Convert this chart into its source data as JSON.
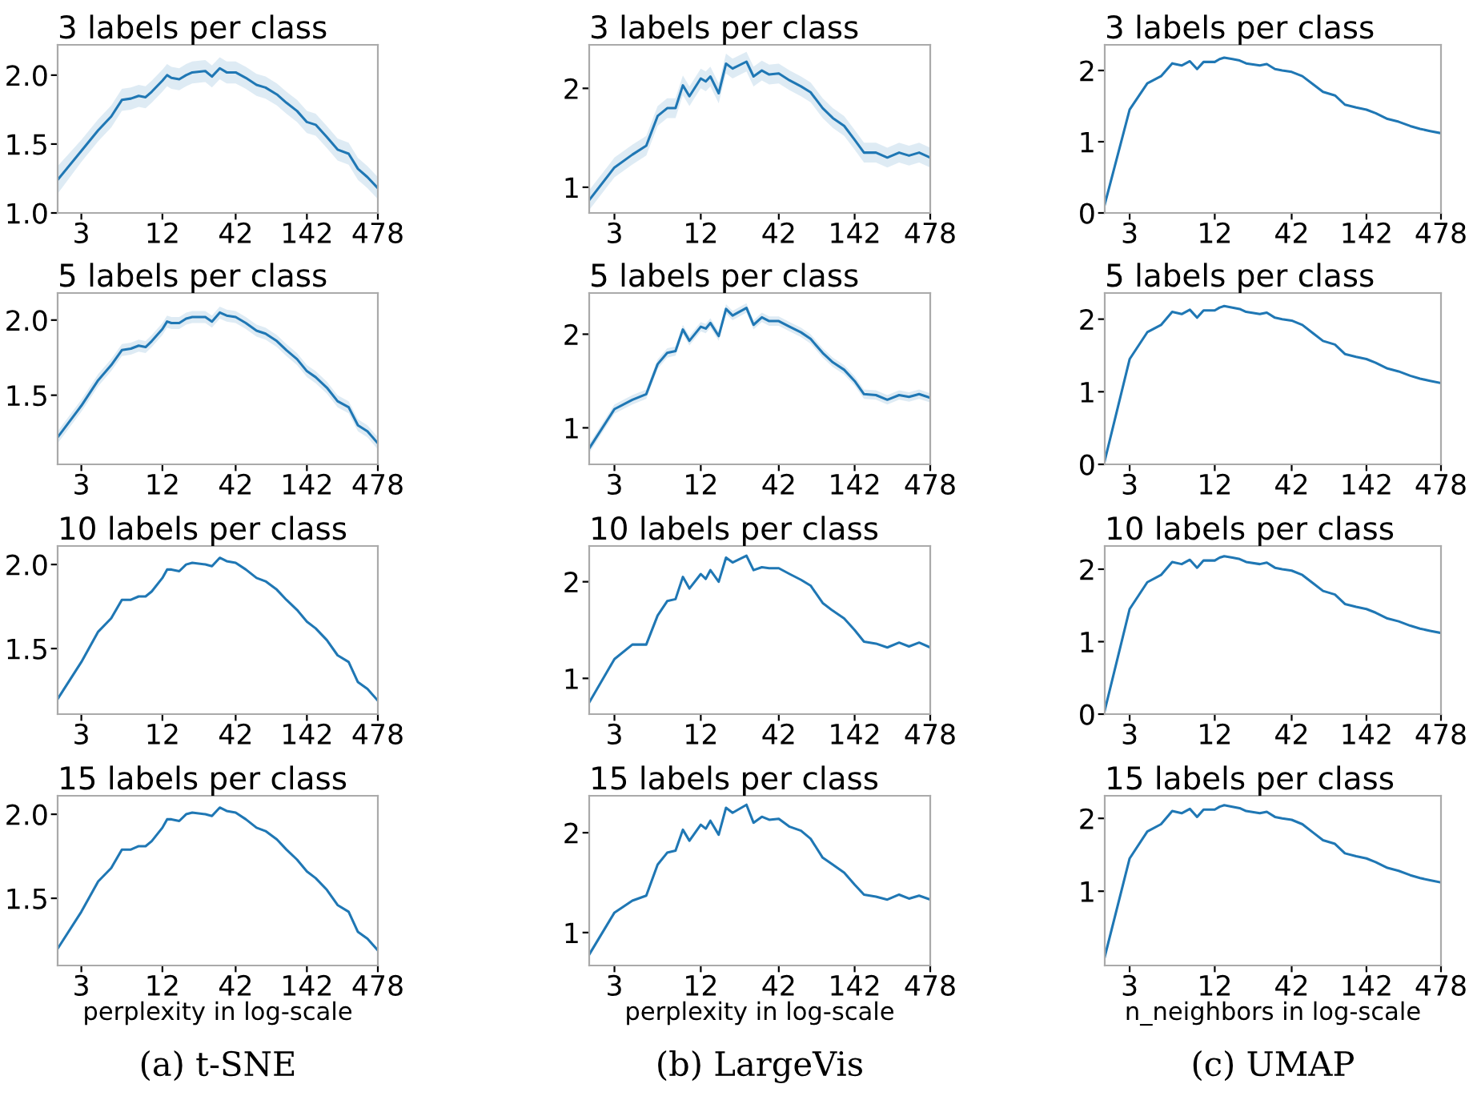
{
  "chart_data": [
    {
      "type": "line",
      "log": "x",
      "title": "3 labels per class",
      "x": [
        2,
        3,
        4,
        5,
        6,
        7,
        8,
        9,
        10,
        12,
        13,
        14,
        16,
        18,
        20,
        25,
        28,
        32,
        36,
        42,
        50,
        60,
        70,
        85,
        100,
        120,
        142,
        165,
        200,
        240,
        290,
        340,
        400,
        478
      ],
      "xlim": [
        2,
        478
      ],
      "xticks": [
        3,
        12,
        42,
        142,
        478
      ],
      "ylim": [
        1.0,
        2.22
      ],
      "yticks": [
        {
          "value": 1.0,
          "label": "1.0"
        },
        {
          "value": 1.5,
          "label": "1.5"
        },
        {
          "value": 2.0,
          "label": "2.0"
        }
      ],
      "series": [
        {
          "color": "#1f77b4",
          "values": [
            1.24,
            1.45,
            1.6,
            1.7,
            1.82,
            1.83,
            1.85,
            1.84,
            1.88,
            1.96,
            2.0,
            1.98,
            1.97,
            2.0,
            2.02,
            2.03,
            1.99,
            2.05,
            2.02,
            2.02,
            1.98,
            1.93,
            1.91,
            1.86,
            1.8,
            1.74,
            1.66,
            1.64,
            1.55,
            1.46,
            1.43,
            1.32,
            1.26,
            1.18
          ],
          "lower": [
            1.14,
            1.37,
            1.52,
            1.62,
            1.74,
            1.75,
            1.77,
            1.76,
            1.8,
            1.88,
            1.92,
            1.9,
            1.89,
            1.92,
            1.94,
            1.95,
            1.91,
            1.97,
            1.94,
            1.94,
            1.9,
            1.85,
            1.83,
            1.78,
            1.72,
            1.66,
            1.58,
            1.56,
            1.47,
            1.38,
            1.35,
            1.24,
            1.18,
            1.1
          ],
          "upper": [
            1.34,
            1.53,
            1.68,
            1.78,
            1.9,
            1.91,
            1.93,
            1.92,
            1.96,
            2.04,
            2.08,
            2.06,
            2.05,
            2.08,
            2.1,
            2.11,
            2.07,
            2.13,
            2.1,
            2.1,
            2.06,
            2.01,
            1.99,
            1.94,
            1.88,
            1.82,
            1.74,
            1.72,
            1.63,
            1.54,
            1.51,
            1.4,
            1.34,
            1.26
          ]
        }
      ]
    },
    {
      "type": "line",
      "log": "x",
      "title": "3 labels per class",
      "x": [
        2,
        3,
        4,
        5,
        6,
        7,
        8,
        9,
        10,
        12,
        13,
        14,
        16,
        18,
        20,
        25,
        28,
        32,
        36,
        42,
        50,
        60,
        70,
        85,
        100,
        120,
        142,
        165,
        200,
        240,
        290,
        340,
        400,
        478
      ],
      "xlim": [
        2,
        478
      ],
      "xticks": [
        3,
        12,
        42,
        142,
        478
      ],
      "ylim": [
        0.74,
        2.44
      ],
      "yticks": [
        1,
        2
      ],
      "series": [
        {
          "color": "#1f77b4",
          "values": [
            0.87,
            1.2,
            1.33,
            1.42,
            1.72,
            1.8,
            1.8,
            2.03,
            1.92,
            2.1,
            2.07,
            2.12,
            1.95,
            2.25,
            2.2,
            2.27,
            2.12,
            2.18,
            2.14,
            2.15,
            2.08,
            2.02,
            1.96,
            1.8,
            1.7,
            1.62,
            1.48,
            1.35,
            1.35,
            1.3,
            1.35,
            1.32,
            1.35,
            1.3
          ],
          "lower": [
            0.77,
            1.1,
            1.23,
            1.32,
            1.62,
            1.7,
            1.7,
            1.93,
            1.82,
            2.0,
            1.97,
            2.02,
            1.85,
            2.15,
            2.1,
            2.17,
            2.02,
            2.08,
            2.04,
            2.05,
            1.98,
            1.92,
            1.86,
            1.7,
            1.6,
            1.52,
            1.38,
            1.25,
            1.25,
            1.2,
            1.25,
            1.22,
            1.25,
            1.2
          ],
          "upper": [
            0.97,
            1.3,
            1.43,
            1.52,
            1.82,
            1.9,
            1.9,
            2.13,
            2.02,
            2.2,
            2.17,
            2.22,
            2.05,
            2.35,
            2.3,
            2.37,
            2.22,
            2.28,
            2.24,
            2.25,
            2.18,
            2.12,
            2.06,
            1.9,
            1.8,
            1.72,
            1.58,
            1.45,
            1.45,
            1.4,
            1.45,
            1.42,
            1.45,
            1.4
          ]
        }
      ]
    },
    {
      "type": "line",
      "log": "x",
      "title": "3 labels per class",
      "x": [
        2,
        3,
        4,
        5,
        6,
        7,
        8,
        9,
        10,
        12,
        13,
        14,
        16,
        18,
        20,
        25,
        28,
        32,
        36,
        42,
        50,
        60,
        70,
        85,
        100,
        120,
        142,
        165,
        200,
        240,
        290,
        340,
        400,
        478
      ],
      "xlim": [
        2,
        478
      ],
      "xticks": [
        3,
        12,
        42,
        142,
        478
      ],
      "ylim": [
        0,
        2.36
      ],
      "yticks": [
        0,
        1,
        2
      ],
      "series": [
        {
          "color": "#1f77b4",
          "values": [
            0.12,
            1.45,
            1.82,
            1.92,
            2.1,
            2.07,
            2.13,
            2.02,
            2.12,
            2.12,
            2.16,
            2.18,
            2.16,
            2.14,
            2.1,
            2.07,
            2.09,
            2.02,
            2.0,
            1.98,
            1.92,
            1.8,
            1.7,
            1.65,
            1.52,
            1.48,
            1.45,
            1.4,
            1.32,
            1.28,
            1.22,
            1.18,
            1.15,
            1.12
          ]
        }
      ]
    },
    {
      "type": "line",
      "log": "x",
      "title": "5 labels per class",
      "x": [
        2,
        3,
        4,
        5,
        6,
        7,
        8,
        9,
        10,
        12,
        13,
        14,
        16,
        18,
        20,
        25,
        28,
        32,
        36,
        42,
        50,
        60,
        70,
        85,
        100,
        120,
        142,
        165,
        200,
        240,
        290,
        340,
        400,
        478
      ],
      "xlim": [
        2,
        478
      ],
      "xticks": [
        3,
        12,
        42,
        142,
        478
      ],
      "ylim": [
        1.04,
        2.18
      ],
      "yticks": [
        {
          "value": 1.5,
          "label": "1.5"
        },
        {
          "value": 2.0,
          "label": "2.0"
        }
      ],
      "series": [
        {
          "color": "#1f77b4",
          "values": [
            1.22,
            1.43,
            1.6,
            1.7,
            1.8,
            1.81,
            1.83,
            1.82,
            1.86,
            1.94,
            1.99,
            1.98,
            1.98,
            2.01,
            2.02,
            2.02,
            1.99,
            2.05,
            2.03,
            2.02,
            1.98,
            1.93,
            1.91,
            1.86,
            1.8,
            1.74,
            1.66,
            1.62,
            1.55,
            1.46,
            1.42,
            1.3,
            1.26,
            1.18
          ],
          "lower": [
            1.18,
            1.39,
            1.56,
            1.66,
            1.76,
            1.77,
            1.79,
            1.78,
            1.82,
            1.9,
            1.95,
            1.94,
            1.94,
            1.97,
            1.98,
            1.98,
            1.95,
            2.01,
            1.99,
            1.98,
            1.94,
            1.89,
            1.87,
            1.82,
            1.76,
            1.7,
            1.62,
            1.58,
            1.51,
            1.42,
            1.38,
            1.26,
            1.22,
            1.14
          ],
          "upper": [
            1.26,
            1.47,
            1.64,
            1.74,
            1.84,
            1.85,
            1.87,
            1.86,
            1.9,
            1.98,
            2.03,
            2.02,
            2.02,
            2.05,
            2.06,
            2.06,
            2.03,
            2.09,
            2.07,
            2.06,
            2.02,
            1.97,
            1.95,
            1.9,
            1.84,
            1.78,
            1.7,
            1.66,
            1.59,
            1.5,
            1.46,
            1.34,
            1.3,
            1.22
          ]
        }
      ]
    },
    {
      "type": "line",
      "log": "x",
      "title": "5 labels per class",
      "x": [
        2,
        3,
        4,
        5,
        6,
        7,
        8,
        9,
        10,
        12,
        13,
        14,
        16,
        18,
        20,
        25,
        28,
        32,
        36,
        42,
        50,
        60,
        70,
        85,
        100,
        120,
        142,
        165,
        200,
        240,
        290,
        340,
        400,
        478
      ],
      "xlim": [
        2,
        478
      ],
      "xticks": [
        3,
        12,
        42,
        142,
        478
      ],
      "ylim": [
        0.61,
        2.44
      ],
      "yticks": [
        1,
        2
      ],
      "series": [
        {
          "color": "#1f77b4",
          "values": [
            0.78,
            1.2,
            1.3,
            1.36,
            1.68,
            1.8,
            1.82,
            2.05,
            1.93,
            2.08,
            2.06,
            2.12,
            1.98,
            2.27,
            2.2,
            2.28,
            2.1,
            2.18,
            2.14,
            2.14,
            2.08,
            2.02,
            1.95,
            1.8,
            1.7,
            1.62,
            1.5,
            1.36,
            1.35,
            1.3,
            1.35,
            1.33,
            1.36,
            1.32
          ],
          "lower": [
            0.73,
            1.15,
            1.25,
            1.31,
            1.63,
            1.75,
            1.77,
            2.0,
            1.88,
            2.03,
            2.01,
            2.07,
            1.93,
            2.22,
            2.15,
            2.23,
            2.05,
            2.13,
            2.09,
            2.09,
            2.03,
            1.97,
            1.9,
            1.75,
            1.65,
            1.57,
            1.45,
            1.31,
            1.3,
            1.25,
            1.3,
            1.28,
            1.31,
            1.27
          ],
          "upper": [
            0.83,
            1.25,
            1.35,
            1.41,
            1.73,
            1.85,
            1.87,
            2.1,
            1.98,
            2.13,
            2.11,
            2.17,
            2.03,
            2.32,
            2.25,
            2.33,
            2.15,
            2.23,
            2.19,
            2.19,
            2.13,
            2.07,
            2.0,
            1.85,
            1.75,
            1.67,
            1.55,
            1.41,
            1.4,
            1.35,
            1.4,
            1.38,
            1.41,
            1.37
          ]
        }
      ]
    },
    {
      "type": "line",
      "log": "x",
      "title": "5 labels per class",
      "x": [
        2,
        3,
        4,
        5,
        6,
        7,
        8,
        9,
        10,
        12,
        13,
        14,
        16,
        18,
        20,
        25,
        28,
        32,
        36,
        42,
        50,
        60,
        70,
        85,
        100,
        120,
        142,
        165,
        200,
        240,
        290,
        340,
        400,
        478
      ],
      "xlim": [
        2,
        478
      ],
      "xticks": [
        3,
        12,
        42,
        142,
        478
      ],
      "ylim": [
        0,
        2.36
      ],
      "yticks": [
        0,
        1,
        2
      ],
      "series": [
        {
          "color": "#1f77b4",
          "values": [
            0.05,
            1.45,
            1.82,
            1.92,
            2.1,
            2.07,
            2.13,
            2.02,
            2.12,
            2.12,
            2.16,
            2.18,
            2.16,
            2.14,
            2.1,
            2.07,
            2.09,
            2.02,
            2.0,
            1.98,
            1.92,
            1.8,
            1.7,
            1.65,
            1.52,
            1.48,
            1.45,
            1.4,
            1.32,
            1.28,
            1.22,
            1.18,
            1.15,
            1.12
          ]
        }
      ]
    },
    {
      "type": "line",
      "log": "x",
      "title": "10 labels per class",
      "x": [
        2,
        3,
        4,
        5,
        6,
        7,
        8,
        9,
        10,
        12,
        13,
        14,
        16,
        18,
        20,
        25,
        28,
        32,
        36,
        42,
        50,
        60,
        70,
        85,
        100,
        120,
        142,
        165,
        200,
        240,
        290,
        340,
        400,
        478
      ],
      "xlim": [
        2,
        478
      ],
      "xticks": [
        3,
        12,
        42,
        142,
        478
      ],
      "ylim": [
        1.11,
        2.11
      ],
      "yticks": [
        {
          "value": 1.5,
          "label": "1.5"
        },
        {
          "value": 2.0,
          "label": "2.0"
        }
      ],
      "series": [
        {
          "color": "#1f77b4",
          "values": [
            1.2,
            1.42,
            1.6,
            1.68,
            1.79,
            1.79,
            1.81,
            1.81,
            1.84,
            1.92,
            1.97,
            1.97,
            1.96,
            2.0,
            2.01,
            2.0,
            1.99,
            2.04,
            2.02,
            2.01,
            1.97,
            1.92,
            1.9,
            1.85,
            1.79,
            1.73,
            1.66,
            1.62,
            1.55,
            1.46,
            1.42,
            1.3,
            1.26,
            1.19
          ]
        }
      ]
    },
    {
      "type": "line",
      "log": "x",
      "title": "10 labels per class",
      "x": [
        2,
        3,
        4,
        5,
        6,
        7,
        8,
        9,
        10,
        12,
        13,
        14,
        16,
        18,
        20,
        25,
        28,
        32,
        36,
        42,
        50,
        60,
        70,
        85,
        100,
        120,
        142,
        165,
        200,
        240,
        290,
        340,
        400,
        478
      ],
      "xlim": [
        2,
        478
      ],
      "xticks": [
        3,
        12,
        42,
        142,
        478
      ],
      "ylim": [
        0.63,
        2.37
      ],
      "yticks": [
        1,
        2
      ],
      "series": [
        {
          "color": "#1f77b4",
          "values": [
            0.75,
            1.2,
            1.35,
            1.35,
            1.65,
            1.8,
            1.82,
            2.05,
            1.93,
            2.08,
            2.03,
            2.12,
            2.0,
            2.25,
            2.2,
            2.27,
            2.12,
            2.15,
            2.14,
            2.14,
            2.08,
            2.02,
            1.96,
            1.78,
            1.7,
            1.62,
            1.5,
            1.38,
            1.36,
            1.32,
            1.37,
            1.33,
            1.37,
            1.32
          ]
        }
      ]
    },
    {
      "type": "line",
      "log": "x",
      "title": "10 labels per class",
      "x": [
        2,
        3,
        4,
        5,
        6,
        7,
        8,
        9,
        10,
        12,
        13,
        14,
        16,
        18,
        20,
        25,
        28,
        32,
        36,
        42,
        50,
        60,
        70,
        85,
        100,
        120,
        142,
        165,
        200,
        240,
        290,
        340,
        400,
        478
      ],
      "xlim": [
        2,
        478
      ],
      "xticks": [
        3,
        12,
        42,
        142,
        478
      ],
      "ylim": [
        0,
        2.32
      ],
      "yticks": [
        0,
        1,
        2
      ],
      "series": [
        {
          "color": "#1f77b4",
          "values": [
            0.05,
            1.45,
            1.82,
            1.92,
            2.1,
            2.07,
            2.13,
            2.02,
            2.12,
            2.12,
            2.16,
            2.18,
            2.16,
            2.14,
            2.1,
            2.07,
            2.09,
            2.02,
            2.0,
            1.98,
            1.92,
            1.8,
            1.7,
            1.65,
            1.52,
            1.48,
            1.45,
            1.4,
            1.32,
            1.28,
            1.22,
            1.18,
            1.15,
            1.12
          ]
        }
      ]
    },
    {
      "type": "line",
      "log": "x",
      "title": "15 labels per class",
      "xlabel": "perplexity in log-scale",
      "annotations": [
        "(a) t-SNE"
      ],
      "x": [
        2,
        3,
        4,
        5,
        6,
        7,
        8,
        9,
        10,
        12,
        13,
        14,
        16,
        18,
        20,
        25,
        28,
        32,
        36,
        42,
        50,
        60,
        70,
        85,
        100,
        120,
        142,
        165,
        200,
        240,
        290,
        340,
        400,
        478
      ],
      "xlim": [
        2,
        478
      ],
      "xticks": [
        3,
        12,
        42,
        142,
        478
      ],
      "ylim": [
        1.1,
        2.11
      ],
      "yticks": [
        {
          "value": 1.5,
          "label": "1.5"
        },
        {
          "value": 2.0,
          "label": "2.0"
        }
      ],
      "series": [
        {
          "color": "#1f77b4",
          "values": [
            1.2,
            1.42,
            1.6,
            1.68,
            1.79,
            1.79,
            1.81,
            1.81,
            1.84,
            1.92,
            1.97,
            1.97,
            1.96,
            2.0,
            2.01,
            2.0,
            1.99,
            2.04,
            2.02,
            2.01,
            1.97,
            1.92,
            1.9,
            1.85,
            1.79,
            1.73,
            1.66,
            1.62,
            1.55,
            1.46,
            1.42,
            1.3,
            1.26,
            1.19
          ]
        }
      ]
    },
    {
      "type": "line",
      "log": "x",
      "title": "15 labels per class",
      "xlabel": "perplexity in log-scale",
      "annotations": [
        "(b) LargeVis"
      ],
      "x": [
        2,
        3,
        4,
        5,
        6,
        7,
        8,
        9,
        10,
        12,
        13,
        14,
        16,
        18,
        20,
        25,
        28,
        32,
        36,
        42,
        50,
        60,
        70,
        85,
        100,
        120,
        142,
        165,
        200,
        240,
        290,
        340,
        400,
        478
      ],
      "xlim": [
        2,
        478
      ],
      "xticks": [
        3,
        12,
        42,
        142,
        478
      ],
      "ylim": [
        0.67,
        2.37
      ],
      "yticks": [
        1,
        2
      ],
      "series": [
        {
          "color": "#1f77b4",
          "values": [
            0.78,
            1.2,
            1.32,
            1.37,
            1.68,
            1.8,
            1.82,
            2.03,
            1.92,
            2.08,
            2.04,
            2.12,
            1.98,
            2.25,
            2.2,
            2.28,
            2.1,
            2.16,
            2.13,
            2.14,
            2.06,
            2.02,
            1.94,
            1.75,
            1.68,
            1.6,
            1.48,
            1.38,
            1.36,
            1.33,
            1.38,
            1.34,
            1.37,
            1.33
          ]
        }
      ]
    },
    {
      "type": "line",
      "log": "x",
      "title": "15 labels per class",
      "xlabel": "n_neighbors in log-scale",
      "annotations": [
        "(c) UMAP"
      ],
      "x": [
        2,
        3,
        4,
        5,
        6,
        7,
        8,
        9,
        10,
        12,
        13,
        14,
        16,
        18,
        20,
        25,
        28,
        32,
        36,
        42,
        50,
        60,
        70,
        85,
        100,
        120,
        142,
        165,
        200,
        240,
        290,
        340,
        400,
        478
      ],
      "xlim": [
        2,
        478
      ],
      "xticks": [
        3,
        12,
        42,
        142,
        478
      ],
      "ylim": [
        -0.02,
        2.31
      ],
      "yticks": [
        1,
        2
      ],
      "series": [
        {
          "color": "#1f77b4",
          "values": [
            0.1,
            1.45,
            1.82,
            1.92,
            2.1,
            2.07,
            2.13,
            2.02,
            2.12,
            2.12,
            2.16,
            2.18,
            2.16,
            2.14,
            2.1,
            2.07,
            2.09,
            2.02,
            2.0,
            1.98,
            1.92,
            1.8,
            1.7,
            1.65,
            1.52,
            1.48,
            1.45,
            1.4,
            1.32,
            1.28,
            1.22,
            1.18,
            1.15,
            1.12
          ]
        }
      ]
    }
  ]
}
